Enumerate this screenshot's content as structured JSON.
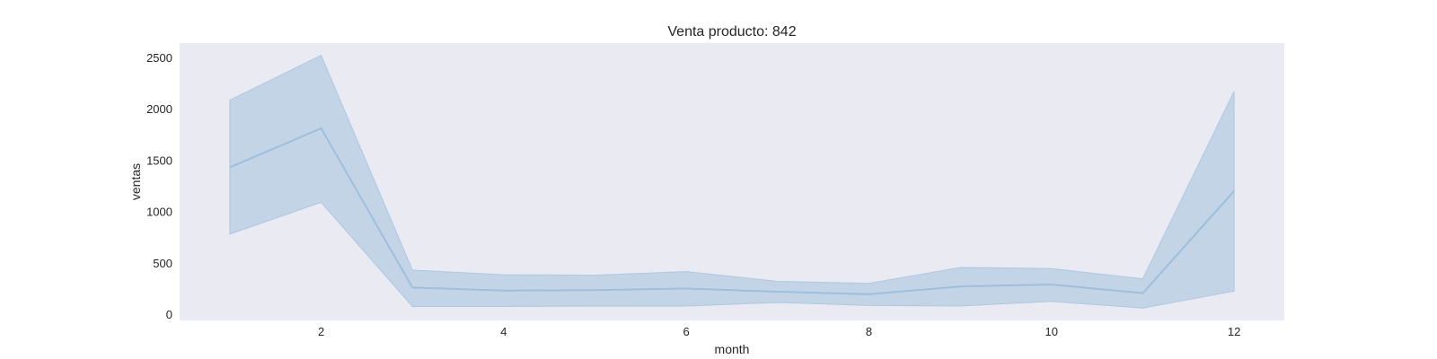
{
  "chart_data": {
    "type": "line",
    "title": "Venta producto: 842",
    "xlabel": "month",
    "ylabel": "ventas",
    "x": [
      1,
      2,
      3,
      4,
      5,
      6,
      7,
      8,
      9,
      10,
      11,
      12
    ],
    "xticks": [
      2,
      4,
      6,
      8,
      10,
      12
    ],
    "yticks": [
      0,
      500,
      1000,
      1500,
      2000,
      2500
    ],
    "xlim": [
      0.45,
      12.55
    ],
    "ylim": [
      -60,
      2640
    ],
    "grid": false,
    "series": [
      {
        "values": [
          1430,
          1810,
          260,
          230,
          235,
          250,
          220,
          195,
          270,
          290,
          205,
          1200
        ],
        "lower": [
          780,
          1090,
          75,
          75,
          80,
          80,
          115,
          85,
          80,
          125,
          60,
          225
        ],
        "upper": [
          2085,
          2520,
          430,
          385,
          380,
          415,
          320,
          300,
          455,
          445,
          345,
          2170
        ]
      }
    ],
    "colors": {
      "plot_background": "#eaeaf2",
      "line": "#9ebfdb",
      "band": "#aec7e0"
    }
  }
}
